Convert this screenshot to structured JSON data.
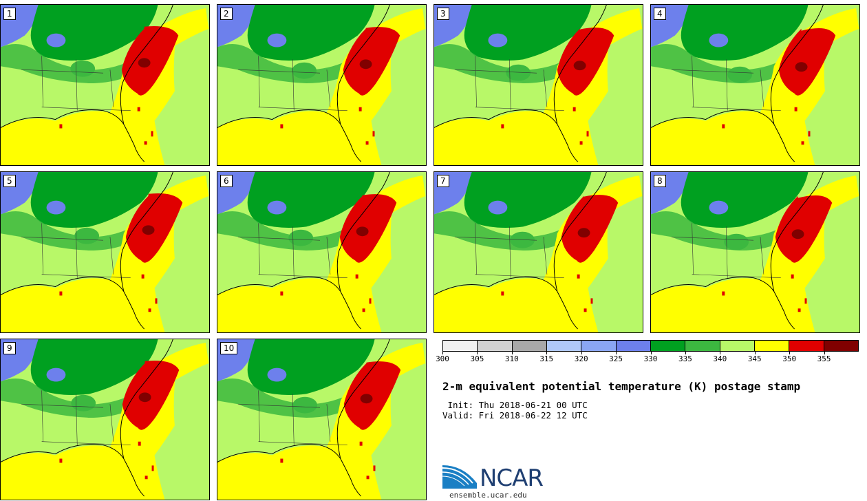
{
  "stamps": [
    {
      "label": "1"
    },
    {
      "label": "2"
    },
    {
      "label": "3"
    },
    {
      "label": "4"
    },
    {
      "label": "5"
    },
    {
      "label": "6"
    },
    {
      "label": "7"
    },
    {
      "label": "8"
    },
    {
      "label": "9"
    },
    {
      "label": "10"
    }
  ],
  "colorbar": {
    "colors": [
      "#f0f0f0",
      "#d2d2d2",
      "#a8a8a8",
      "#afc8f8",
      "#8aa6f4",
      "#6d80ec",
      "#00a020",
      "#3cb840",
      "#b8f868",
      "#ffff00",
      "#e00000",
      "#800000"
    ],
    "ticks": [
      "300",
      "305",
      "310",
      "315",
      "320",
      "325",
      "330",
      "335",
      "340",
      "345",
      "350",
      "355"
    ]
  },
  "title": "2-m equivalent potential temperature (K) postage stamp",
  "init_text": " Init: Thu 2018-06-21 00 UTC",
  "valid_text": "Valid: Fri 2018-06-22 12 UTC",
  "logo": {
    "text": "NCAR",
    "url": "ensemble.ucar.edu",
    "colors": {
      "navy": "#1f3f72",
      "blue": "#1a7fc4"
    }
  }
}
